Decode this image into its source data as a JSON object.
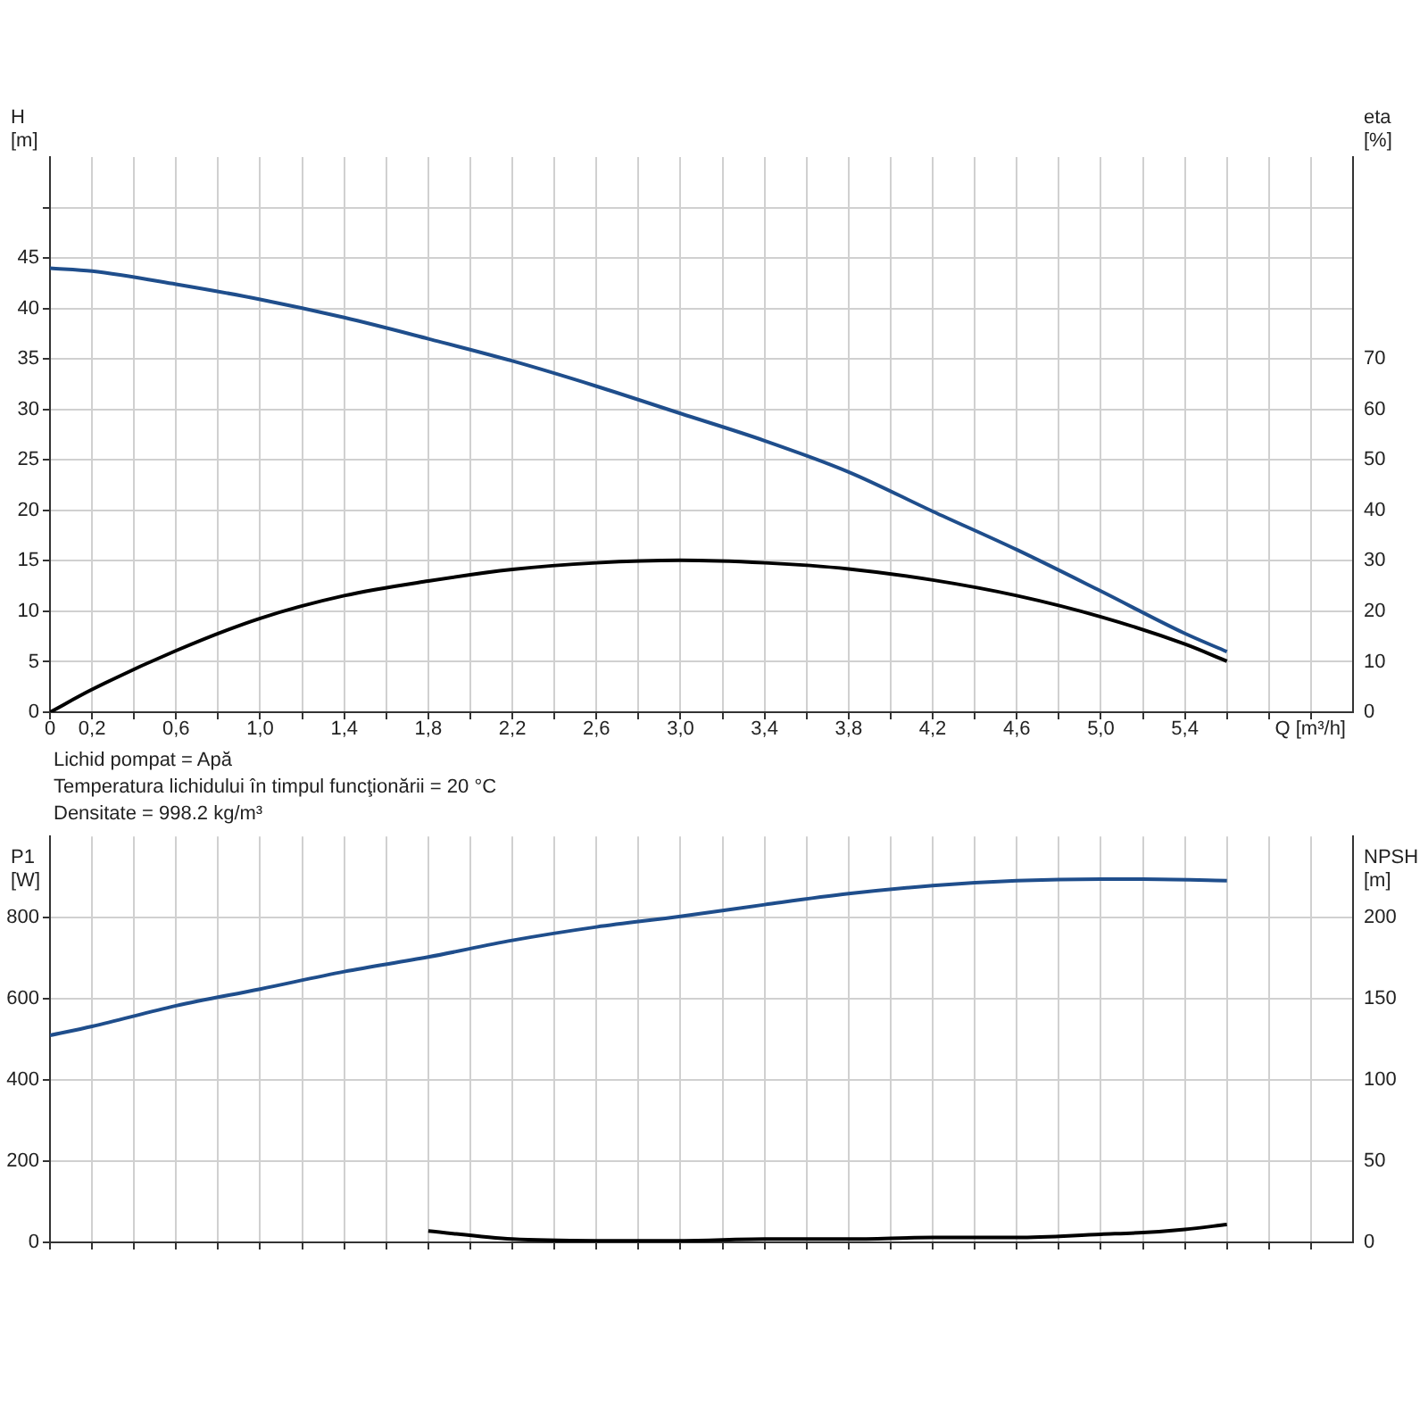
{
  "chart_data": [
    {
      "type": "line",
      "xlabel": "Q [m³/h]",
      "ylabel": "H [m]",
      "y2label": "eta [%]",
      "xlim": [
        0,
        6.2
      ],
      "xticks": [
        0,
        {
          "value": 0.2,
          "label": "0,2"
        },
        {
          "value": 0.4,
          "label": null
        },
        {
          "value": 0.6,
          "label": "0,6"
        },
        {
          "value": 0.8,
          "label": null
        },
        {
          "value": 1.0,
          "label": "1,0"
        },
        {
          "value": 1.2,
          "label": null
        },
        {
          "value": 1.4,
          "label": "1,4"
        },
        {
          "value": 1.6,
          "label": null
        },
        {
          "value": 1.8,
          "label": "1,8"
        },
        {
          "value": 2.0,
          "label": null
        },
        {
          "value": 2.2,
          "label": "2,2"
        },
        {
          "value": 2.4,
          "label": null
        },
        {
          "value": 2.6,
          "label": "2,6"
        },
        {
          "value": 2.8,
          "label": null
        },
        {
          "value": 3.0,
          "label": "3,0"
        },
        {
          "value": 3.2,
          "label": null
        },
        {
          "value": 3.4,
          "label": "3,4"
        },
        {
          "value": 3.6,
          "label": null
        },
        {
          "value": 3.8,
          "label": "3,8"
        },
        {
          "value": 4.0,
          "label": null
        },
        {
          "value": 4.2,
          "label": "4,2"
        },
        {
          "value": 4.4,
          "label": null
        },
        {
          "value": 4.6,
          "label": "4,6"
        },
        {
          "value": 4.8,
          "label": null
        },
        {
          "value": 5.0,
          "label": "5,0"
        },
        {
          "value": 5.2,
          "label": null
        },
        {
          "value": 5.4,
          "label": "5,4"
        },
        {
          "value": 5.6,
          "label": null
        },
        {
          "value": 5.8,
          "label": null
        },
        {
          "value": 6.0,
          "label": null
        }
      ],
      "ylim": [
        0,
        55
      ],
      "yticks": [
        0,
        5,
        10,
        15,
        20,
        25,
        30,
        35,
        40,
        45,
        {
          "value": 50,
          "label": null
        }
      ],
      "y2lim": [
        0,
        110
      ],
      "y2ticks": [
        0,
        10,
        20,
        30,
        40,
        50,
        60,
        70
      ],
      "grid": true,
      "series": [
        {
          "color": "#1f4e8c",
          "x": [
            0,
            0.2,
            0.6,
            1.0,
            1.4,
            1.8,
            2.2,
            2.6,
            3.0,
            3.4,
            3.8,
            4.2,
            4.6,
            5.0,
            5.4,
            5.6
          ],
          "values": [
            44,
            43.7,
            42.4,
            40.9,
            39.1,
            37.0,
            34.8,
            32.3,
            29.6,
            26.9,
            23.8,
            19.9,
            16.1,
            12.0,
            7.8,
            6.0
          ]
        },
        {
          "color": "#000000",
          "axis": "y2",
          "x": [
            0,
            0.2,
            0.6,
            1.0,
            1.4,
            1.8,
            2.2,
            2.6,
            3.0,
            3.4,
            3.8,
            4.2,
            4.6,
            5.0,
            5.4,
            5.6
          ],
          "values": [
            0,
            4.5,
            12.2,
            18.6,
            23.1,
            26,
            28.3,
            29.6,
            30.1,
            29.6,
            28.4,
            26.2,
            23.1,
            18.9,
            13.5,
            10.1
          ]
        }
      ],
      "annotations": [
        "Lichid pompat = Apă",
        "Temperatura lichidului în timpul funcţionării = 20 °C",
        "Densitate = 998.2 kg/m³"
      ]
    },
    {
      "type": "line",
      "ylabel": "P1 [W]",
      "y2label": "NPSH [m]",
      "xlim": [
        0,
        6.2
      ],
      "xticks": [
        0,
        0.2,
        0.4,
        0.6,
        0.8,
        1.0,
        1.2,
        1.4,
        1.6,
        1.8,
        2.0,
        2.2,
        2.4,
        2.6,
        2.8,
        3.0,
        3.2,
        3.4,
        3.6,
        3.8,
        4.0,
        4.2,
        4.4,
        4.6,
        4.8,
        5.0,
        5.2,
        5.4,
        5.6,
        5.8,
        6.0
      ],
      "ylim": [
        0,
        1000
      ],
      "yticks": [
        0,
        200,
        400,
        600,
        800
      ],
      "y2lim": [
        0,
        250
      ],
      "y2ticks": [
        0,
        50,
        100,
        150,
        200
      ],
      "grid": true,
      "tick_labels": "y",
      "series": [
        {
          "color": "#1f4e8c",
          "x": [
            0,
            0.2,
            0.6,
            1.0,
            1.4,
            1.8,
            2.2,
            2.6,
            3.0,
            3.4,
            3.8,
            4.2,
            4.6,
            5.0,
            5.2,
            5.6
          ],
          "values": [
            510,
            532,
            583,
            624,
            667,
            703,
            744,
            777,
            803,
            832,
            859,
            879,
            891,
            895,
            895,
            891
          ]
        },
        {
          "color": "#000000",
          "axis": "y2",
          "x": [
            1.8,
            2.2,
            2.6,
            3.0,
            3.4,
            3.8,
            4.2,
            4.6,
            5.0,
            5.2,
            5.4,
            5.6
          ],
          "values": [
            7,
            2,
            1,
            1,
            2,
            2,
            3,
            3,
            5,
            6,
            8,
            11
          ]
        }
      ]
    }
  ]
}
